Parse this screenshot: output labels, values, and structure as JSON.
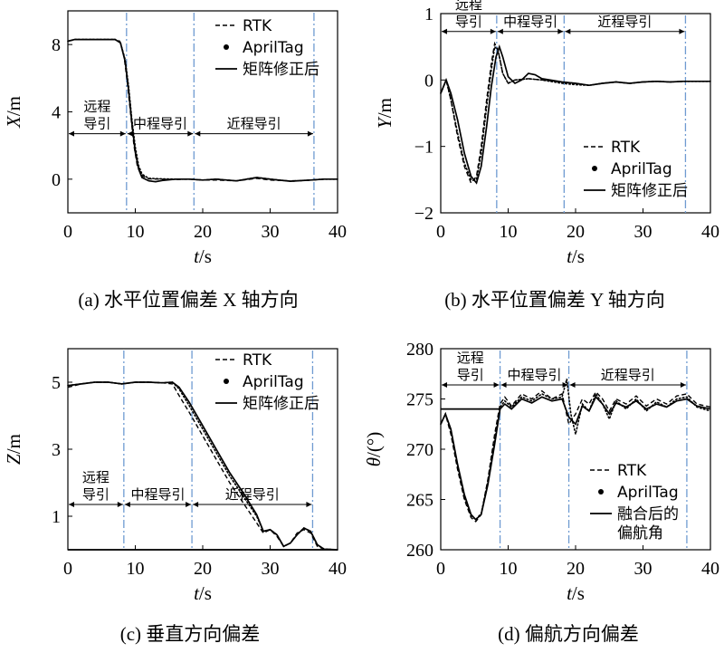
{
  "chart_data": [
    {
      "type": "line",
      "caption": "(a) 水平位置偏差 X 轴方向",
      "xlabel": "t/s",
      "ylabel": "X/m",
      "xlim": [
        0,
        40
      ],
      "ylim": [
        -2,
        10
      ],
      "xticks": [
        "0",
        "10",
        "20",
        "30",
        "40"
      ],
      "yticks": [
        {
          "v": 8,
          "t": "8"
        },
        {
          "v": 4,
          "t": "4"
        },
        {
          "v": 0,
          "t": "0"
        }
      ],
      "legend_position": "top-right",
      "phase_lines": [
        8.7,
        18.7,
        36.5
      ],
      "phase_y": 2.7,
      "phases": [
        {
          "lines": [
            "远程",
            "导引"
          ],
          "from": 0,
          "to": 8.7
        },
        {
          "lines": [
            "中程导引"
          ],
          "from": 8.7,
          "to": 18.7
        },
        {
          "lines": [
            "近程导引"
          ],
          "from": 18.7,
          "to": 36.5
        }
      ],
      "series": [
        {
          "name": "RTK",
          "style": "dashed",
          "x": [
            0,
            1,
            3,
            5,
            7,
            7.7,
            8.3,
            8.8,
            9.3,
            9.8,
            10.3,
            11,
            12,
            14,
            16,
            18,
            20,
            22,
            25,
            28,
            30,
            33,
            36,
            38,
            40
          ],
          "y": [
            8.2,
            8.3,
            8.3,
            8.3,
            8.3,
            8.2,
            7.4,
            5.8,
            3.9,
            2.0,
            0.8,
            0.2,
            0.02,
            0,
            -0.02,
            0,
            -0.05,
            -0.05,
            -0.1,
            0.05,
            -0.05,
            -0.1,
            -0.05,
            0,
            0
          ]
        },
        {
          "name": "AprilTag",
          "style": "dots",
          "x": [
            0,
            1,
            3,
            5,
            7,
            7.8,
            8.5,
            9,
            9.5,
            10,
            10.5,
            11,
            12,
            14,
            16,
            18,
            20,
            22,
            25,
            28,
            30,
            33,
            36,
            38,
            40
          ],
          "y": [
            8.2,
            8.3,
            8.3,
            8.3,
            8.3,
            8.1,
            7.1,
            5.5,
            3.5,
            1.9,
            0.8,
            0.3,
            0.05,
            0.02,
            0,
            0,
            -0.05,
            0,
            -0.1,
            0.1,
            0,
            -0.12,
            -0.05,
            0,
            0
          ]
        },
        {
          "name": "矩阵修正后",
          "style": "solid",
          "x": [
            0,
            1,
            3,
            5,
            7,
            7.8,
            8.5,
            9,
            9.5,
            10,
            10.5,
            11,
            12,
            13,
            14,
            16,
            18,
            20,
            22,
            25,
            28,
            30,
            33,
            36,
            38,
            40
          ],
          "y": [
            8.2,
            8.3,
            8.3,
            8.3,
            8.3,
            8.1,
            7.0,
            5.3,
            3.3,
            1.6,
            0.6,
            0.1,
            -0.1,
            -0.15,
            -0.08,
            0,
            0,
            -0.05,
            0,
            -0.1,
            0.1,
            0,
            -0.12,
            -0.05,
            0,
            0
          ]
        }
      ]
    },
    {
      "type": "line",
      "caption": "(b) 水平位置偏差 Y 轴方向",
      "xlabel": "t/s",
      "ylabel": "Y/m",
      "xlim": [
        0,
        40
      ],
      "ylim": [
        -2,
        1
      ],
      "xticks": [
        "0",
        "10",
        "20",
        "30",
        "40"
      ],
      "yticks": [
        {
          "v": 1,
          "t": "1"
        },
        {
          "v": 0,
          "t": "0"
        },
        {
          "v": -1,
          "t": "−1"
        },
        {
          "v": -2,
          "t": "−2"
        }
      ],
      "legend_position": "bottom-right",
      "phase_lines": [
        8.3,
        18.3,
        36.3
      ],
      "phase_y": 0.73,
      "phases": [
        {
          "lines": [
            "远程",
            "导引"
          ],
          "from": 0,
          "to": 8.3
        },
        {
          "lines": [
            "中程导引"
          ],
          "from": 8.3,
          "to": 18.3
        },
        {
          "lines": [
            "近程导引"
          ],
          "from": 18.3,
          "to": 36.3
        }
      ],
      "series": [
        {
          "name": "RTK",
          "style": "dashed",
          "x": [
            0,
            0.8,
            1.5,
            2.5,
            3.5,
            4.5,
            5.3,
            6.0,
            6.8,
            7.5,
            8.0,
            8.5,
            9.2,
            10,
            11,
            13,
            15,
            18,
            20,
            22,
            24,
            26,
            28,
            30,
            32,
            34,
            36,
            38,
            40
          ],
          "y": [
            -0.2,
            0,
            -0.3,
            -0.85,
            -1.3,
            -1.55,
            -1.45,
            -1.0,
            -0.3,
            0.25,
            0.55,
            0.45,
            0.1,
            -0.05,
            0,
            0.02,
            0,
            -0.03,
            -0.05,
            -0.08,
            -0.05,
            -0.03,
            -0.05,
            -0.03,
            -0.02,
            -0.03,
            -0.02,
            -0.02,
            -0.02
          ]
        },
        {
          "name": "AprilTag",
          "style": "dots",
          "x": [
            0,
            0.8,
            1.5,
            2.5,
            3.5,
            4.5,
            5.3,
            6.0,
            6.8,
            7.5,
            8.0,
            8.5,
            9.2,
            10,
            11,
            13,
            15,
            18,
            20,
            22,
            24,
            26,
            28,
            30,
            32,
            34,
            36,
            38,
            40
          ],
          "y": [
            -0.2,
            0,
            -0.3,
            -0.8,
            -1.25,
            -1.5,
            -1.5,
            -1.1,
            -0.4,
            0.15,
            0.5,
            0.45,
            0.1,
            -0.05,
            0,
            0.02,
            0,
            -0.05,
            -0.07,
            -0.08,
            -0.05,
            -0.03,
            -0.05,
            -0.03,
            -0.02,
            -0.03,
            -0.02,
            -0.02,
            -0.02
          ]
        },
        {
          "name": "矩阵修正后",
          "style": "solid",
          "x": [
            0,
            0.8,
            1.5,
            2.5,
            3.5,
            4.5,
            5.3,
            6.0,
            6.8,
            7.5,
            8.2,
            8.7,
            9.2,
            10,
            11,
            12,
            13,
            14,
            15,
            18,
            20,
            22,
            24,
            26,
            28,
            30,
            32,
            34,
            36,
            38,
            40
          ],
          "y": [
            -0.2,
            0,
            -0.2,
            -0.6,
            -1.1,
            -1.45,
            -1.55,
            -1.3,
            -0.7,
            -0.1,
            0.35,
            0.5,
            0.35,
            0.05,
            -0.05,
            0,
            0.1,
            0.08,
            0.02,
            -0.03,
            -0.05,
            -0.08,
            -0.05,
            -0.03,
            -0.05,
            -0.03,
            -0.02,
            -0.03,
            -0.02,
            -0.02,
            -0.02
          ]
        }
      ]
    },
    {
      "type": "line",
      "caption": "(c) 垂直方向偏差",
      "xlabel": "t/s",
      "ylabel": "Z/m",
      "xlim": [
        0,
        40
      ],
      "ylim": [
        0,
        6
      ],
      "xticks": [
        "0",
        "10",
        "20",
        "30",
        "40"
      ],
      "yticks": [
        {
          "v": 5,
          "t": "5"
        },
        {
          "v": 3,
          "t": "3"
        },
        {
          "v": 1,
          "t": "1"
        }
      ],
      "legend_position": "top-right",
      "phase_lines": [
        8.3,
        18.4,
        36.3
      ],
      "phase_y": 1.35,
      "phases": [
        {
          "lines": [
            "远程",
            "导引"
          ],
          "from": 0,
          "to": 8.3
        },
        {
          "lines": [
            "中程导引"
          ],
          "from": 8.3,
          "to": 18.4
        },
        {
          "lines": [
            "近程导引"
          ],
          "from": 18.4,
          "to": 36.3
        }
      ],
      "series": [
        {
          "name": "RTK",
          "style": "dashed",
          "x": [
            0,
            2,
            4,
            6,
            8,
            10,
            12,
            14,
            15.5,
            16.5,
            18,
            20,
            22,
            24,
            26,
            28,
            29,
            30,
            31,
            32,
            33,
            34,
            35,
            36,
            37,
            38,
            40
          ],
          "y": [
            4.85,
            4.95,
            5.0,
            5.0,
            4.95,
            5.0,
            5.0,
            4.98,
            4.95,
            4.6,
            4.1,
            3.4,
            2.7,
            2.0,
            1.4,
            0.8,
            0.5,
            0.6,
            0.4,
            0.1,
            0.2,
            0.5,
            0.6,
            0.5,
            0.1,
            0.02,
            0
          ]
        },
        {
          "name": "AprilTag",
          "style": "dots",
          "x": [
            0,
            2,
            4,
            6,
            8,
            10,
            12,
            14,
            15.5,
            16.5,
            18,
            20,
            22,
            24,
            26,
            28,
            29,
            30,
            31,
            32,
            33,
            34,
            35,
            36,
            37,
            38,
            40
          ],
          "y": [
            4.9,
            4.95,
            5.0,
            5.0,
            4.95,
            5.0,
            5.0,
            4.98,
            5.0,
            4.8,
            4.3,
            3.6,
            2.9,
            2.2,
            1.6,
            1.0,
            0.55,
            0.6,
            0.45,
            0.1,
            0.2,
            0.45,
            0.65,
            0.55,
            0.15,
            0.02,
            0
          ]
        },
        {
          "name": "矩阵修正后",
          "style": "solid",
          "x": [
            0,
            2,
            4,
            6,
            8,
            10,
            12,
            14,
            15.5,
            16.5,
            18,
            20,
            22,
            24,
            26,
            28,
            29,
            30,
            31,
            32,
            33,
            34,
            35,
            36,
            37,
            38,
            40
          ],
          "y": [
            4.9,
            4.95,
            5.0,
            5.0,
            4.95,
            5.0,
            5.0,
            4.98,
            5.0,
            4.85,
            4.4,
            3.7,
            3.0,
            2.3,
            1.7,
            1.05,
            0.55,
            0.6,
            0.45,
            0.1,
            0.2,
            0.45,
            0.65,
            0.55,
            0.15,
            0.02,
            0
          ]
        },
        {
          "name": "",
          "style": "solid",
          "x": [
            0,
            40
          ],
          "y": [
            0,
            0
          ]
        }
      ]
    },
    {
      "type": "line",
      "caption": "(d) 偏航方向偏差",
      "xlabel": "t/s",
      "ylabel": "θ/(°)",
      "xlim": [
        0,
        40
      ],
      "ylim": [
        260,
        280
      ],
      "xticks": [
        "0",
        "10",
        "20",
        "30",
        "40"
      ],
      "yticks": [
        {
          "v": 280,
          "t": "280"
        },
        {
          "v": 275,
          "t": "275"
        },
        {
          "v": 270,
          "t": "270"
        },
        {
          "v": 265,
          "t": "265"
        },
        {
          "v": 260,
          "t": "260"
        }
      ],
      "legend_position": "bottom-right",
      "phase_lines": [
        8.8,
        19.0,
        36.5
      ],
      "phase_y": 276.4,
      "phases": [
        {
          "lines": [
            "远程",
            "导引"
          ],
          "from": 0,
          "to": 8.8
        },
        {
          "lines": [
            "中程导引"
          ],
          "from": 8.8,
          "to": 19.0
        },
        {
          "lines": [
            "近程导引"
          ],
          "from": 19.0,
          "to": 36.5
        }
      ],
      "series": [
        {
          "name": "RTK",
          "style": "dashed",
          "x": [
            0,
            0.7,
            1.5,
            2.5,
            3.5,
            4.5,
            5.2,
            6.0,
            7.0,
            8.0,
            8.8,
            9.5,
            10.5,
            12,
            13.5,
            15,
            16.5,
            18,
            19,
            20,
            21,
            22,
            23,
            24,
            25,
            26,
            27.5,
            29,
            30.5,
            32,
            33.5,
            35,
            36.5,
            38,
            40
          ],
          "y": [
            272.5,
            273.5,
            271.5,
            268,
            265,
            263.2,
            262.8,
            263.5,
            267,
            271.5,
            274.5,
            275.2,
            274.3,
            275.5,
            275,
            275.8,
            275,
            275.5,
            272.5,
            273.5,
            275,
            274.5,
            275.7,
            275,
            273.8,
            275,
            274.5,
            275.3,
            274.3,
            275,
            274.5,
            275.3,
            275.5,
            274.5,
            274.2
          ]
        },
        {
          "name": "AprilTag",
          "style": "dots",
          "x": [
            0,
            0.7,
            1.5,
            2.5,
            3.5,
            4.5,
            5.2,
            6.0,
            7.0,
            8.0,
            8.8,
            9.5,
            10.5,
            12,
            13.5,
            15,
            16.5,
            18,
            18.7,
            19.3,
            20,
            21,
            22,
            23,
            24,
            25,
            26,
            27.5,
            29,
            30.5,
            32,
            33.5,
            35,
            36.5,
            38,
            40
          ],
          "y": [
            272.5,
            273.5,
            271.8,
            268.3,
            265.2,
            263.4,
            263,
            263.6,
            266.8,
            271,
            274.2,
            274.8,
            274.2,
            275.2,
            274.8,
            275.5,
            275,
            275.2,
            277,
            273.5,
            271.5,
            274.5,
            273.8,
            275.5,
            274.5,
            273,
            274.8,
            274,
            275,
            273.8,
            274.7,
            274.2,
            275,
            275.2,
            274.2,
            273.8
          ]
        },
        {
          "name": "融合后的偏航角",
          "style": "solid",
          "x": [
            0,
            0.7,
            1.5,
            2.5,
            3.5,
            4.5,
            5.2,
            6.0,
            7.0,
            8.0,
            8.8,
            9.5,
            10.5,
            12,
            13.5,
            15,
            16.5,
            18,
            19,
            20,
            21,
            22,
            23,
            24,
            25,
            26,
            27.5,
            29,
            30.5,
            32,
            33.5,
            35,
            36.5,
            38,
            40
          ],
          "y": [
            272.5,
            273.5,
            272,
            268.5,
            265.5,
            263.5,
            263,
            263.5,
            266.5,
            270.5,
            274,
            274.5,
            274,
            275,
            274.6,
            275.2,
            274.8,
            275,
            273.2,
            272.5,
            274.3,
            273.8,
            275.2,
            274.5,
            273.5,
            274.6,
            274.2,
            274.8,
            274,
            274.5,
            274.2,
            274.8,
            275,
            274.3,
            274
          ]
        },
        {
          "name": "",
          "style": "solid",
          "x": [
            0,
            8.8
          ],
          "y": [
            274,
            274
          ]
        }
      ]
    }
  ]
}
